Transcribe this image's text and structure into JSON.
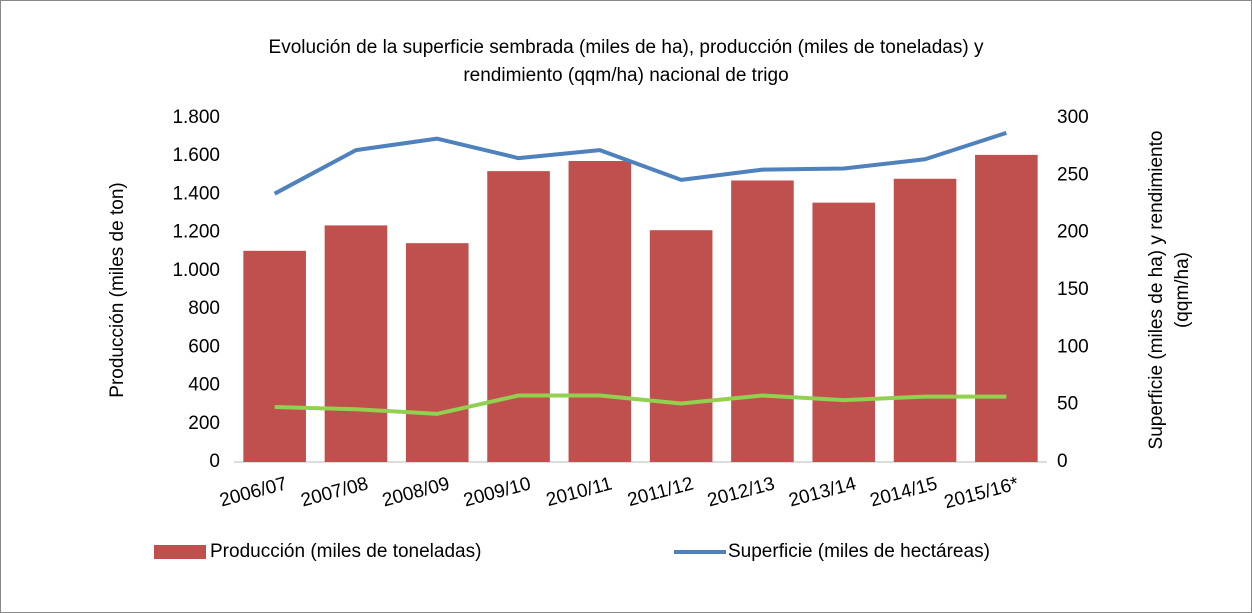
{
  "chart_data": {
    "type": "bar",
    "title": [
      "Evolución de la superficie sembrada (miles de ha), producción (miles de toneladas) y",
      "rendimiento (qqm/ha) nacional de trigo"
    ],
    "ylabel": "Producción (miles de ton)",
    "y2label": [
      "Superficie (miles de ha) y rendimiento",
      "(qqm/ha)"
    ],
    "categories": [
      "2006/07",
      "2007/08",
      "2008/09",
      "2009/10",
      "2010/11",
      "2011/12",
      "2012/13",
      "2013/14",
      "2014/15",
      "2015/16*"
    ],
    "series": [
      {
        "name": "Producción (miles de toneladas)",
        "type": "bar",
        "color": "#c0504d",
        "values": [
          1105,
          1238,
          1145,
          1522,
          1575,
          1213,
          1473,
          1357,
          1482,
          1607
        ]
      },
      {
        "name": "Superficie (miles de hectáreas)",
        "type": "line",
        "axis": "y2",
        "color": "#4f81bd",
        "values": [
          234,
          272,
          282,
          265,
          272,
          246,
          255,
          256,
          264,
          287
        ]
      },
      {
        "type": "line",
        "axis": "y2",
        "color": "#92d050",
        "values": [
          48,
          46,
          42,
          58,
          58,
          51,
          58,
          54,
          57,
          57
        ]
      }
    ],
    "ylim": [
      0,
      1800
    ],
    "yticks": [
      0,
      200,
      400,
      600,
      800,
      {
        "value": 1000,
        "label": "1.000"
      },
      {
        "value": 1200,
        "label": "1.200"
      },
      {
        "value": 1400,
        "label": "1.400"
      },
      {
        "value": 1600,
        "label": "1.600"
      },
      {
        "value": 1800,
        "label": "1.800"
      }
    ],
    "y2lim": [
      0,
      300
    ],
    "y2ticks": [
      0,
      50,
      100,
      150,
      200,
      250,
      300
    ],
    "legend": "bottom"
  }
}
